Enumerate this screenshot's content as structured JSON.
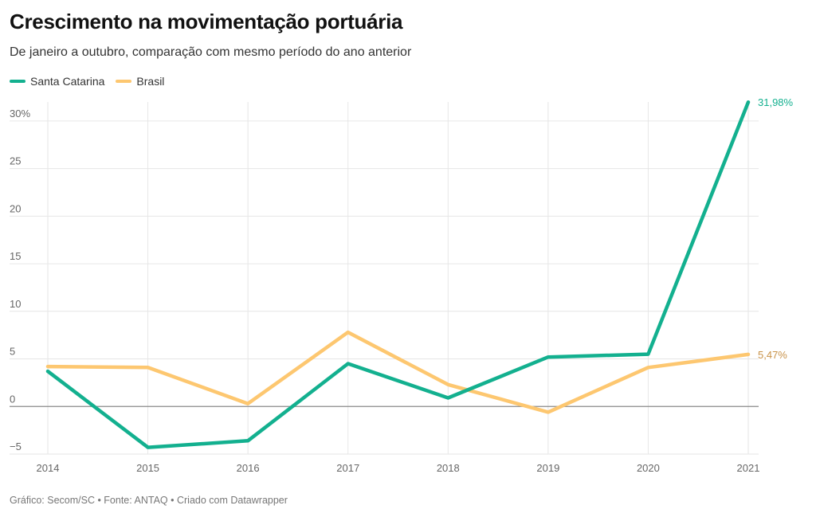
{
  "chart_data": {
    "type": "line",
    "title": "Crescimento na movimentação portuária",
    "subtitle": "De janeiro a outubro, comparação com mesmo período do ano anterior",
    "xlabel": "",
    "ylabel": "",
    "x": [
      2014,
      2015,
      2016,
      2017,
      2018,
      2019,
      2020,
      2021
    ],
    "x_tick_labels": [
      "2014",
      "2015",
      "2016",
      "2017",
      "2018",
      "2019",
      "2020",
      "2021"
    ],
    "ylim": [
      -5,
      32
    ],
    "y_ticks": [
      -5,
      0,
      5,
      10,
      15,
      20,
      25,
      30
    ],
    "y_tick_labels": [
      "−5",
      "0",
      "5",
      "10",
      "15",
      "20",
      "25",
      "30%"
    ],
    "grid": true,
    "legend_position": "top-left",
    "series": [
      {
        "name": "Santa Catarina",
        "color": "#13b08f",
        "values": [
          3.7,
          -4.3,
          -3.6,
          4.5,
          0.9,
          5.2,
          5.5,
          31.98
        ],
        "end_label": "31,98%"
      },
      {
        "name": "Brasil",
        "color": "#fdc770",
        "values": [
          4.2,
          4.1,
          0.3,
          7.8,
          2.3,
          -0.6,
          4.1,
          5.47
        ],
        "end_label": "5,47%"
      }
    ],
    "source": "Gráfico: Secom/SC • Fonte: ANTAQ • Criado com Datawrapper"
  }
}
